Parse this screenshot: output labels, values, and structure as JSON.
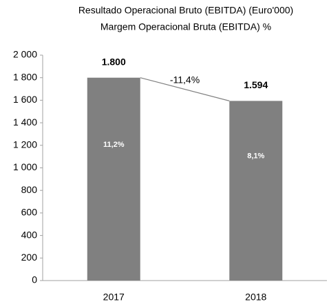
{
  "chart_data": {
    "type": "bar",
    "title": "Resultado Operacional Bruto (EBITDA) (Euro'000)",
    "subtitle": "Margem Operacional Bruta (EBITDA) %",
    "categories": [
      "2017",
      "2018"
    ],
    "values": [
      1800,
      1594
    ],
    "value_labels": [
      "1.800",
      "1.594"
    ],
    "inner_labels": [
      "11,2%",
      "8,1%"
    ],
    "annotation": "-11,4%",
    "color": "#808080",
    "ylim": [
      0,
      2000
    ],
    "yticks": [
      0,
      200,
      400,
      600,
      800,
      {
        "value": 1000,
        "label": "1 000"
      },
      {
        "value": 1200,
        "label": "1 200"
      },
      {
        "value": 1400,
        "label": "1 400"
      },
      {
        "value": 1600,
        "label": "1 600"
      },
      {
        "value": 1800,
        "label": "1 800"
      },
      {
        "value": 2000,
        "label": "2 000"
      }
    ],
    "grid": false
  }
}
